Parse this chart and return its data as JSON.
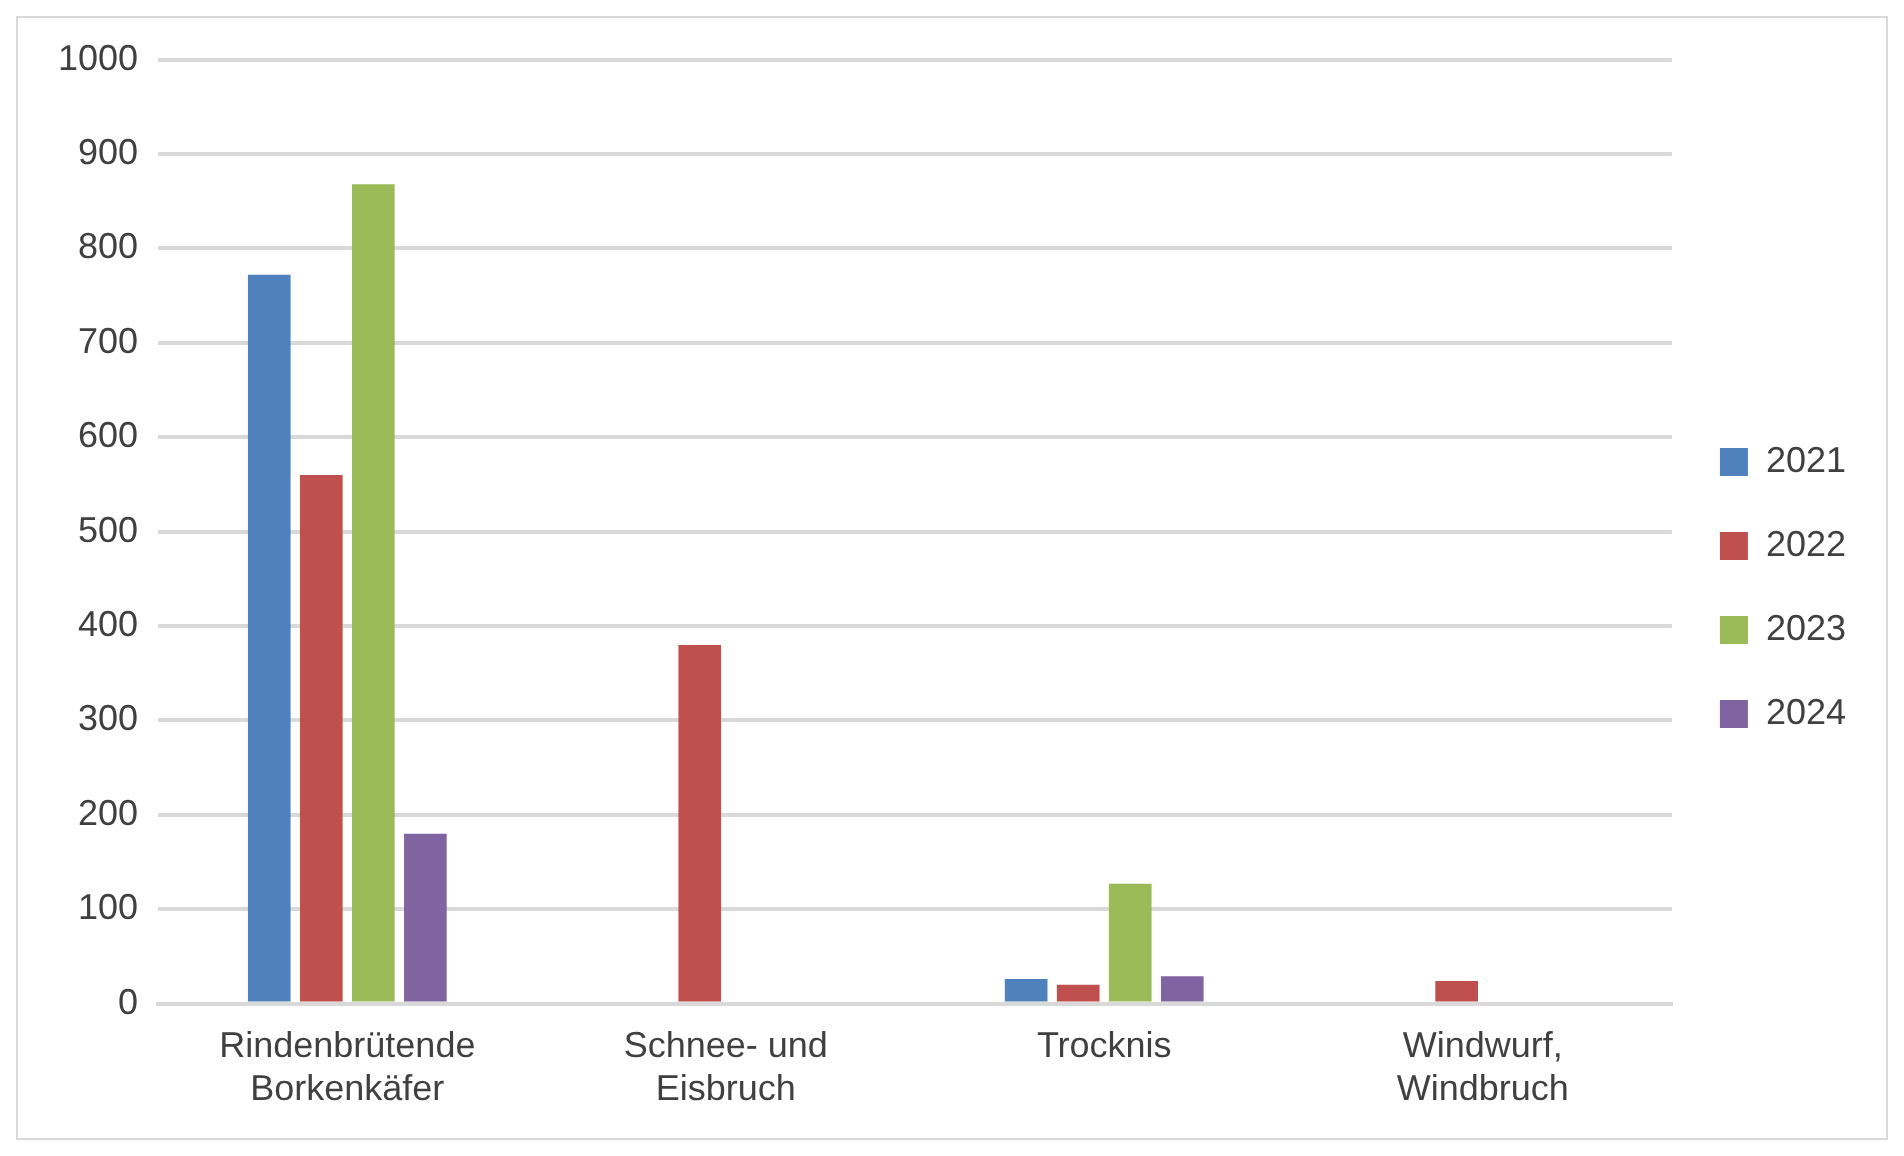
{
  "chart_data": {
    "type": "bar",
    "categories": [
      "Rindenbrütende Borkenkäfer",
      "Schnee- und Eisbruch",
      "Trocknis",
      "Windwurf, Windbruch"
    ],
    "series": [
      {
        "name": "2021",
        "color": "#4f81bd",
        "values": [
          772,
          null,
          26,
          null
        ]
      },
      {
        "name": "2022",
        "color": "#c0504d",
        "values": [
          560,
          380,
          20,
          24
        ]
      },
      {
        "name": "2023",
        "color": "#9bbb59",
        "values": [
          868,
          null,
          127,
          null
        ]
      },
      {
        "name": "2024",
        "color": "#8064a2",
        "values": [
          180,
          null,
          29,
          null
        ]
      }
    ],
    "ylim": [
      0,
      1000
    ],
    "yticks": [
      0,
      100,
      200,
      300,
      400,
      500,
      600,
      700,
      800,
      900,
      1000
    ],
    "grid": "y",
    "legend": "right"
  }
}
